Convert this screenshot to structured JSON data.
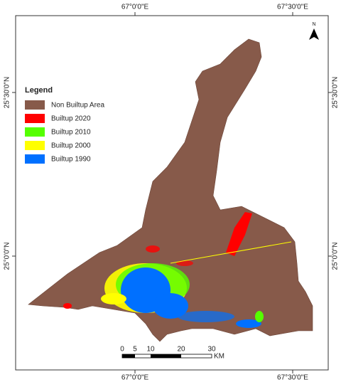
{
  "coordinates": {
    "top": [
      "67°0'0\"E",
      "67°30'0\"E"
    ],
    "bottom": [
      "67°0'0\"E",
      "67°30'0\"E"
    ],
    "left": [
      "25°30'0\"N",
      "25°0'0\"N"
    ],
    "right": [
      "25°30'0\"N",
      "25°0'0\"N"
    ]
  },
  "legend": {
    "title": "Legend",
    "items": [
      {
        "label": "Non Builtup Area",
        "color": "#875a4a"
      },
      {
        "label": "Builtup 2020",
        "color": "#ff0000"
      },
      {
        "label": "Builtup 2010",
        "color": "#55ff00"
      },
      {
        "label": "Builtup 2000",
        "color": "#ffff00"
      },
      {
        "label": "Builtup 1990",
        "color": "#0070ff"
      }
    ]
  },
  "north_arrow": "N",
  "scale_bar": {
    "labels": [
      "0",
      "5",
      "10",
      "20",
      "30"
    ],
    "unit": "KM"
  }
}
